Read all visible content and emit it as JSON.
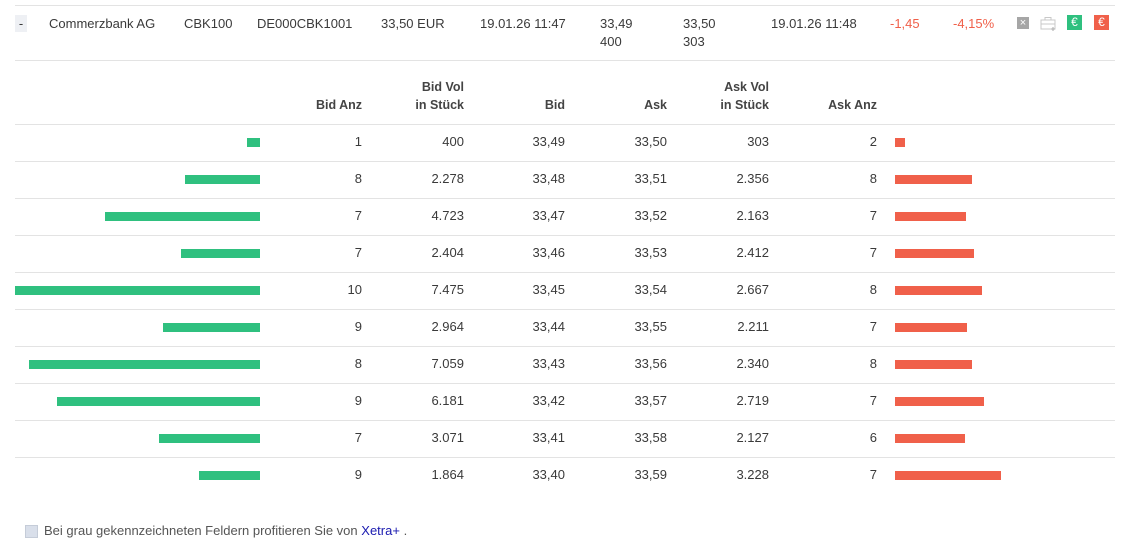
{
  "instrument": {
    "toggle": "-",
    "name": "Commerzbank AG",
    "wkn": "CBK100",
    "isin": "DE000CBK1001",
    "last": "33,50 EUR",
    "last_time": "19.01.26 11:47",
    "bid": "33,49",
    "bid_vol": "400",
    "ask": "33,50",
    "ask_vol": "303",
    "quote_time": "19.01.26 11:48",
    "change": "-1,45",
    "change_pct": "-4,15%",
    "icons": [
      "close-icon",
      "portfolio-add-icon",
      "buy-euro-icon",
      "sell-euro-icon"
    ],
    "buy_symbol": "€",
    "sell_symbol": "€",
    "close_symbol": "×"
  },
  "headers": {
    "bid_anz": "Bid Anz",
    "bid_vol_1": "Bid Vol",
    "bid_vol_2": "in Stück",
    "bid": "Bid",
    "ask": "Ask",
    "ask_vol_1": "Ask Vol",
    "ask_vol_2": "in Stück",
    "ask_anz": "Ask Anz"
  },
  "colors": {
    "bid_bar": "#2fc07f",
    "ask_bar": "#f0604a",
    "negative": "#f0604a",
    "buy": "#2fc07f",
    "sell": "#f0604a"
  },
  "orderbook": [
    {
      "bid_anz": "1",
      "bid_vol": "400",
      "bid": "33,49",
      "ask": "33,50",
      "ask_vol": "303",
      "ask_anz": "2",
      "bid_vol_n": 400,
      "ask_vol_n": 303
    },
    {
      "bid_anz": "8",
      "bid_vol": "2.278",
      "bid": "33,48",
      "ask": "33,51",
      "ask_vol": "2.356",
      "ask_anz": "8",
      "bid_vol_n": 2278,
      "ask_vol_n": 2356
    },
    {
      "bid_anz": "7",
      "bid_vol": "4.723",
      "bid": "33,47",
      "ask": "33,52",
      "ask_vol": "2.163",
      "ask_anz": "7",
      "bid_vol_n": 4723,
      "ask_vol_n": 2163
    },
    {
      "bid_anz": "7",
      "bid_vol": "2.404",
      "bid": "33,46",
      "ask": "33,53",
      "ask_vol": "2.412",
      "ask_anz": "7",
      "bid_vol_n": 2404,
      "ask_vol_n": 2412
    },
    {
      "bid_anz": "10",
      "bid_vol": "7.475",
      "bid": "33,45",
      "ask": "33,54",
      "ask_vol": "2.667",
      "ask_anz": "8",
      "bid_vol_n": 7475,
      "ask_vol_n": 2667
    },
    {
      "bid_anz": "9",
      "bid_vol": "2.964",
      "bid": "33,44",
      "ask": "33,55",
      "ask_vol": "2.211",
      "ask_anz": "7",
      "bid_vol_n": 2964,
      "ask_vol_n": 2211
    },
    {
      "bid_anz": "8",
      "bid_vol": "7.059",
      "bid": "33,43",
      "ask": "33,56",
      "ask_vol": "2.340",
      "ask_anz": "8",
      "bid_vol_n": 7059,
      "ask_vol_n": 2340
    },
    {
      "bid_anz": "9",
      "bid_vol": "6.181",
      "bid": "33,42",
      "ask": "33,57",
      "ask_vol": "2.719",
      "ask_anz": "7",
      "bid_vol_n": 6181,
      "ask_vol_n": 2719
    },
    {
      "bid_anz": "7",
      "bid_vol": "3.071",
      "bid": "33,41",
      "ask": "33,58",
      "ask_vol": "2.127",
      "ask_anz": "6",
      "bid_vol_n": 3071,
      "ask_vol_n": 2127
    },
    {
      "bid_anz": "9",
      "bid_vol": "1.864",
      "bid": "33,40",
      "ask": "33,59",
      "ask_vol": "3.228",
      "ask_anz": "7",
      "bid_vol_n": 1864,
      "ask_vol_n": 3228
    }
  ],
  "footer": {
    "text": "Bei grau gekennzeichneten Feldern profitieren Sie von",
    "link": "Xetra+",
    "end": "."
  }
}
